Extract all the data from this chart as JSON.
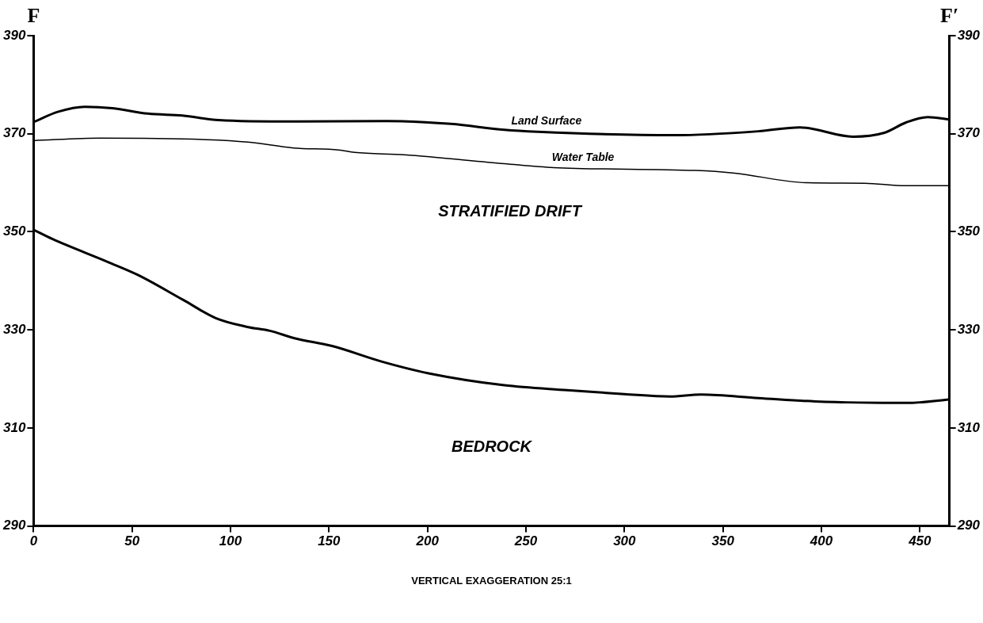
{
  "chart_data": {
    "type": "line",
    "xlim": [
      0,
      465
    ],
    "xticks": [
      0,
      50,
      100,
      150,
      200,
      250,
      300,
      350,
      400,
      450
    ],
    "ylim": [
      290,
      390
    ],
    "yticks": [
      290,
      310,
      330,
      350,
      370,
      390
    ],
    "y2lim": [
      290,
      390
    ],
    "y2ticks": [
      290,
      310,
      330,
      350,
      370,
      390
    ],
    "grid": false,
    "legend": false,
    "marker": "none",
    "line_style": "solid",
    "series": [
      {
        "name": "Land Surface",
        "color": "#000000",
        "x": [
          0,
          12.6,
          26,
          40,
          58,
          75.5,
          94,
          132,
          180,
          212,
          239,
          256,
          325,
          368,
          389,
          416,
          432,
          443,
          454,
          465
        ],
        "values": [
          372.4,
          374.5,
          375.5,
          375.2,
          374.1,
          373.7,
          372.8,
          372.5,
          372.6,
          372,
          370.8,
          370.4,
          369.7,
          370.5,
          371.3,
          369.4,
          370.2,
          372.3,
          373.4,
          372.9
        ]
      },
      {
        "name": "Water Table",
        "color": "#000000",
        "x": [
          0,
          34,
          88,
          108.8,
          132,
          155,
          163,
          188,
          239,
          264,
          336,
          355,
          393,
          422,
          443,
          465
        ],
        "values": [
          368.6,
          369.1,
          368.8,
          368.3,
          367.1,
          366.7,
          366.2,
          365.7,
          363.9,
          363.1,
          362.5,
          362,
          360,
          359.9,
          359.4,
          359.4
        ]
      },
      {
        "color": "#000000",
        "x": [
          0,
          9.7,
          38,
          53,
          76,
          92.5,
          108.5,
          120,
          132.5,
          151.6,
          177,
          201,
          239,
          271,
          300,
          323,
          339,
          368,
          397,
          444,
          465
        ],
        "values": [
          350.4,
          348.5,
          343.8,
          341.2,
          336.1,
          332.4,
          330.6,
          329.8,
          328.3,
          326.7,
          323.5,
          321.1,
          318.7,
          317.7,
          316.9,
          316.4,
          316.8,
          316.1,
          315.4,
          315.1,
          315.8
        ]
      }
    ],
    "annotations": [
      "F",
      "F′",
      "STRATIFIED DRIFT",
      "BEDROCK",
      "VERTICAL EXAGGERATION 25:1"
    ]
  }
}
